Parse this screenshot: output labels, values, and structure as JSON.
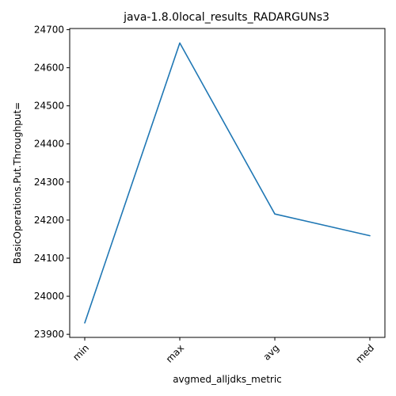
{
  "chart_data": {
    "type": "line",
    "title": "java-1.8.0local_results_RADARGUNs3",
    "xlabel": "avgmed_alljdks_metric",
    "ylabel": "BasicOperations.Put.Throughput=",
    "categories": [
      "min",
      "max",
      "avg",
      "med"
    ],
    "series": [
      {
        "values": [
          23930,
          24665,
          24216,
          24159
        ]
      }
    ],
    "ylim": [
      23892,
      24703
    ],
    "yticks": [
      23900,
      24000,
      24100,
      24200,
      24300,
      24400,
      24500,
      24600,
      24700
    ],
    "ytick_labels": [
      "23900",
      "24000",
      "24100",
      "24200",
      "24300",
      "24400",
      "24500",
      "24600",
      "24700"
    ],
    "grid": false,
    "colors": {
      "line": "#1f77b4"
    }
  }
}
